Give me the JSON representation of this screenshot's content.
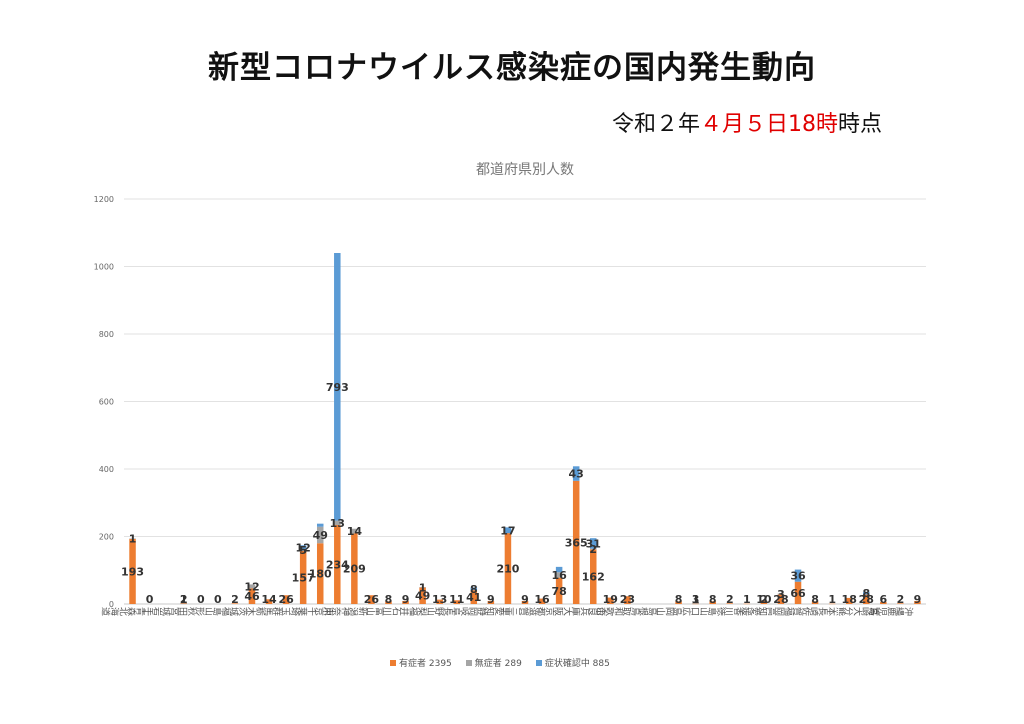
{
  "page": {
    "title": "新型コロナウイルス感染症の国内発生動向",
    "date_prefix": "令和２年",
    "date_month": "４月５日",
    "date_hour": "18時",
    "date_suffix": "時点"
  },
  "chart_data": {
    "type": "bar",
    "stacked": true,
    "title": "都道府県別人数",
    "ylim": [
      0,
      1200
    ],
    "yticks": [
      0,
      200,
      400,
      600,
      800,
      1000,
      1200
    ],
    "grid": true,
    "legend_position": "bottom",
    "categories": [
      "北海道",
      "青森",
      "岩手",
      "宮城",
      "秋田",
      "山形",
      "福島",
      "茨城",
      "栃木",
      "群馬",
      "埼玉",
      "千葉",
      "東京",
      "神奈川",
      "新潟",
      "富山",
      "石川",
      "福井",
      "山梨",
      "長野",
      "岐阜",
      "静岡",
      "愛知",
      "三重",
      "滋賀",
      "京都",
      "大阪",
      "兵庫",
      "奈良",
      "和歌山",
      "鳥取",
      "島根",
      "岡山",
      "広島",
      "山口",
      "徳島",
      "香川",
      "愛媛",
      "高知",
      "福岡",
      "佐賀",
      "長崎",
      "熊本",
      "大分",
      "宮崎",
      "鹿児島",
      "沖縄"
    ],
    "series": [
      {
        "name": "有症者",
        "total_label": "有症者 2395",
        "color": "#ED7D31",
        "values": [
          193,
          0,
          0,
          2,
          0,
          0,
          2,
          46,
          14,
          26,
          157,
          180,
          234,
          209,
          26,
          8,
          9,
          49,
          13,
          11,
          41,
          9,
          210,
          9,
          16,
          78,
          365,
          162,
          19,
          23,
          0,
          0,
          8,
          1,
          8,
          2,
          1,
          10,
          28,
          66,
          8,
          1,
          18,
          28,
          6,
          2,
          9
        ]
      },
      {
        "name": "無症者",
        "total_label": "無症者 289",
        "color": "#A5A5A5",
        "values": [
          1,
          0,
          0,
          1,
          0,
          0,
          0,
          12,
          0,
          0,
          5,
          49,
          13,
          14,
          0,
          0,
          0,
          1,
          0,
          0,
          0,
          0,
          0,
          0,
          0,
          16,
          0,
          2,
          0,
          0,
          0,
          0,
          0,
          3,
          0,
          0,
          0,
          2,
          3,
          0,
          0,
          0,
          0,
          0,
          0,
          0,
          0
        ]
      },
      {
        "name": "症状確認中",
        "total_label": "症状確認中 885",
        "color": "#5B9BD5",
        "values": [
          0,
          0,
          0,
          0,
          0,
          0,
          0,
          0,
          0,
          0,
          12,
          9,
          793,
          0,
          0,
          0,
          0,
          0,
          0,
          0,
          8,
          0,
          17,
          0,
          0,
          16,
          43,
          31,
          0,
          0,
          0,
          0,
          0,
          0,
          0,
          0,
          0,
          0,
          0,
          36,
          0,
          0,
          0,
          8,
          0,
          0,
          0
        ]
      }
    ],
    "data_labels": [
      {
        "category": 0,
        "series": 0,
        "text": "193"
      },
      {
        "category": 0,
        "series": 1,
        "text": "1"
      },
      {
        "category": 1,
        "series": 0,
        "text": "0"
      },
      {
        "category": 3,
        "series": 0,
        "text": "2"
      },
      {
        "category": 3,
        "series": 1,
        "text": "1"
      },
      {
        "category": 4,
        "series": 0,
        "text": "0"
      },
      {
        "category": 5,
        "series": 0,
        "text": "0"
      },
      {
        "category": 6,
        "series": 0,
        "text": "2"
      },
      {
        "category": 7,
        "series": 0,
        "text": "46"
      },
      {
        "category": 7,
        "series": 1,
        "text": "12"
      },
      {
        "category": 8,
        "series": 0,
        "text": "14"
      },
      {
        "category": 9,
        "series": 0,
        "text": "26"
      },
      {
        "category": 10,
        "series": 0,
        "text": "157"
      },
      {
        "category": 10,
        "series": 1,
        "text": "5"
      },
      {
        "category": 10,
        "series": 2,
        "text": "12"
      },
      {
        "category": 11,
        "series": 0,
        "text": "180"
      },
      {
        "category": 11,
        "series": 1,
        "text": "49"
      },
      {
        "category": 12,
        "series": 0,
        "text": "234"
      },
      {
        "category": 12,
        "series": 1,
        "text": "13"
      },
      {
        "category": 12,
        "series": 2,
        "text": "793"
      },
      {
        "category": 13,
        "series": 0,
        "text": "209"
      },
      {
        "category": 13,
        "series": 1,
        "text": "14"
      },
      {
        "category": 14,
        "series": 0,
        "text": "26"
      },
      {
        "category": 15,
        "series": 0,
        "text": "8"
      },
      {
        "category": 16,
        "series": 0,
        "text": "9"
      },
      {
        "category": 17,
        "series": 0,
        "text": "49"
      },
      {
        "category": 17,
        "series": 1,
        "text": "1"
      },
      {
        "category": 18,
        "series": 0,
        "text": "13"
      },
      {
        "category": 19,
        "series": 0,
        "text": "11"
      },
      {
        "category": 20,
        "series": 0,
        "text": "41"
      },
      {
        "category": 20,
        "series": 2,
        "text": "8"
      },
      {
        "category": 21,
        "series": 0,
        "text": "9"
      },
      {
        "category": 22,
        "series": 0,
        "text": "210"
      },
      {
        "category": 22,
        "series": 2,
        "text": "17"
      },
      {
        "category": 23,
        "series": 0,
        "text": "9"
      },
      {
        "category": 24,
        "series": 0,
        "text": "16"
      },
      {
        "category": 25,
        "series": 0,
        "text": "78"
      },
      {
        "category": 25,
        "series": 1,
        "text": "16"
      },
      {
        "category": 26,
        "series": 0,
        "text": "365"
      },
      {
        "category": 26,
        "series": 2,
        "text": "43"
      },
      {
        "category": 27,
        "series": 0,
        "text": "162"
      },
      {
        "category": 27,
        "series": 1,
        "text": "2"
      },
      {
        "category": 27,
        "series": 2,
        "text": "31"
      },
      {
        "category": 28,
        "series": 0,
        "text": "19"
      },
      {
        "category": 29,
        "series": 0,
        "text": "23"
      },
      {
        "category": 32,
        "series": 0,
        "text": "8"
      },
      {
        "category": 33,
        "series": 0,
        "text": "1"
      },
      {
        "category": 33,
        "series": 1,
        "text": "3"
      },
      {
        "category": 34,
        "series": 0,
        "text": "8"
      },
      {
        "category": 35,
        "series": 0,
        "text": "2"
      },
      {
        "category": 36,
        "series": 0,
        "text": "1"
      },
      {
        "category": 37,
        "series": 0,
        "text": "10"
      },
      {
        "category": 37,
        "series": 1,
        "text": "2"
      },
      {
        "category": 38,
        "series": 0,
        "text": "28"
      },
      {
        "category": 38,
        "series": 1,
        "text": "3"
      },
      {
        "category": 39,
        "series": 0,
        "text": "66"
      },
      {
        "category": 39,
        "series": 2,
        "text": "36"
      },
      {
        "category": 40,
        "series": 0,
        "text": "8"
      },
      {
        "category": 41,
        "series": 0,
        "text": "1"
      },
      {
        "category": 42,
        "series": 0,
        "text": "18"
      },
      {
        "category": 43,
        "series": 0,
        "text": "28"
      },
      {
        "category": 43,
        "series": 2,
        "text": "8"
      },
      {
        "category": 44,
        "series": 0,
        "text": "6"
      },
      {
        "category": 45,
        "series": 0,
        "text": "2"
      },
      {
        "category": 46,
        "series": 0,
        "text": "9"
      }
    ]
  }
}
